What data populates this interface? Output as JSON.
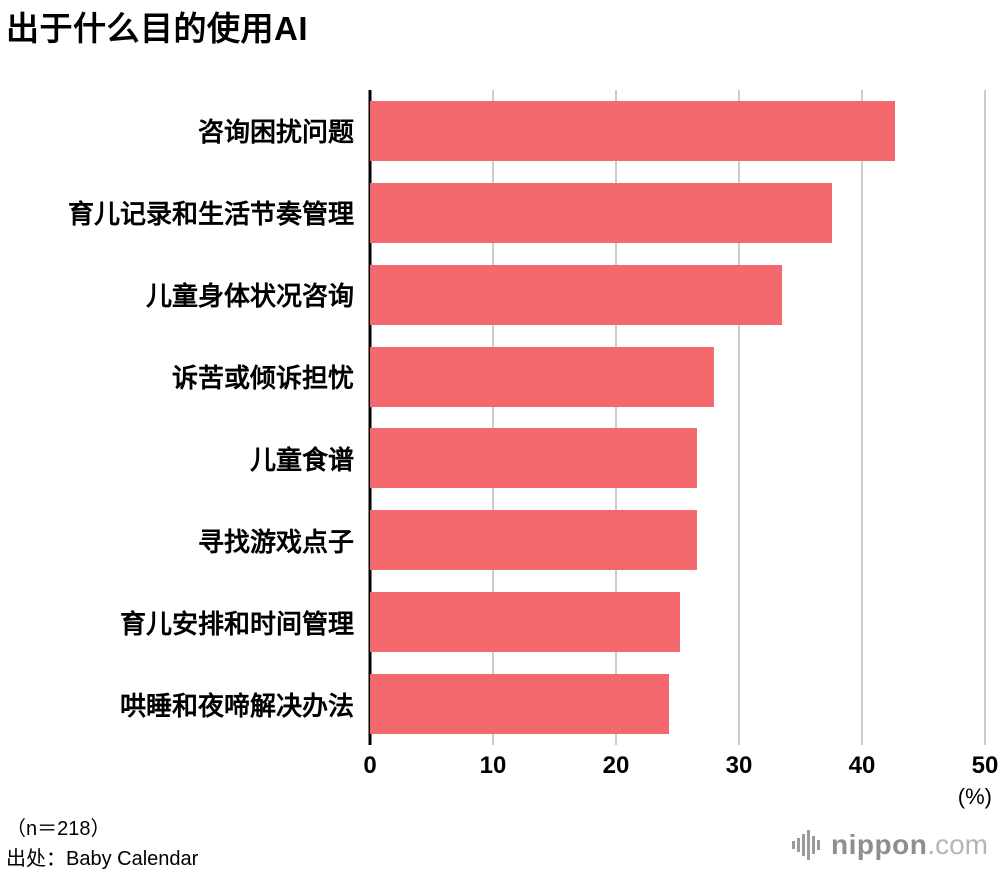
{
  "title": "出于什么目的使用AI",
  "chart_data": {
    "type": "bar",
    "orientation": "horizontal",
    "title": "出于什么目的使用AI",
    "categories": [
      "咨询困扰问题",
      "育儿记录和生活节奏管理",
      "儿童身体状况咨询",
      "诉苦或倾诉担忧",
      "儿童食谱",
      "寻找游戏点子",
      "育儿安排和时间管理",
      "哄睡和夜啼解决办法"
    ],
    "values": [
      42.7,
      37.6,
      33.5,
      28.0,
      26.6,
      26.6,
      25.2,
      24.3
    ],
    "xlim": [
      0,
      50
    ],
    "xticks": [
      0,
      10,
      20,
      30,
      40,
      50
    ],
    "x_unit_label": "(%)",
    "grid": true,
    "bar_color": "#F3696E",
    "gridline_color": "#cccccc",
    "axis_line_color": "#000000"
  },
  "footer": {
    "sample_size": "（n＝218）",
    "source": "出处：Baby Calendar"
  },
  "logo": {
    "name": "nippon",
    "tld": ".com",
    "icon": "soundwave-icon"
  }
}
